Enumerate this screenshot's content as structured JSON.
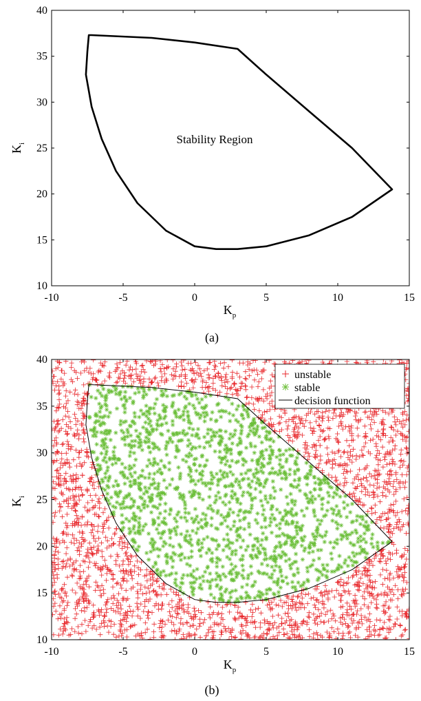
{
  "chart_data": [
    {
      "type": "line",
      "caption": "(a)",
      "annotation": "Stability Region",
      "xlabel": "K",
      "xlabel_sub": "p",
      "ylabel": "K",
      "ylabel_sub": "i",
      "xlim": [
        -10,
        15
      ],
      "ylim": [
        10,
        40
      ],
      "xticks": [
        -10,
        -5,
        0,
        5,
        10,
        15
      ],
      "yticks": [
        10,
        15,
        20,
        25,
        30,
        35,
        40
      ],
      "grid": false,
      "series": [
        {
          "color": "#000000",
          "x": [
            -7.4,
            -7.2,
            -3.0,
            0.0,
            3.0,
            5.0,
            8.0,
            11.0,
            13.8,
            11.0,
            8.0,
            5.0,
            3.0,
            1.5,
            0.0,
            -2.0,
            -4.0,
            -5.5,
            -6.5,
            -7.2,
            -7.6,
            -7.5,
            -7.4
          ],
          "y": [
            37.3,
            37.3,
            37.0,
            36.5,
            35.8,
            33.0,
            29.0,
            25.0,
            20.5,
            17.5,
            15.5,
            14.3,
            14.0,
            14.0,
            14.3,
            16.0,
            19.0,
            22.5,
            26.0,
            29.5,
            33.0,
            35.5,
            37.3
          ]
        }
      ]
    },
    {
      "type": "scatter",
      "caption": "(b)",
      "xlabel": "K",
      "xlabel_sub": "p",
      "ylabel": "K",
      "ylabel_sub": "i",
      "xlim": [
        -10,
        15
      ],
      "ylim": [
        10,
        40
      ],
      "xticks": [
        -10,
        -5,
        0,
        5,
        10,
        15
      ],
      "yticks": [
        10,
        15,
        20,
        25,
        30,
        35,
        40
      ],
      "grid": false,
      "legend_position": "top-right",
      "series": [
        {
          "name": "unstable",
          "marker": "+",
          "color": "#e8262a",
          "sample_count": 2600
        },
        {
          "name": "stable",
          "marker": "*",
          "color": "#6cbf3a",
          "sample_count": 1700
        },
        {
          "name": "decision function",
          "marker": "line",
          "color": "#000000",
          "x": [
            -7.4,
            -7.2,
            -3.0,
            0.0,
            3.0,
            5.0,
            8.0,
            11.0,
            13.8,
            11.0,
            8.0,
            5.0,
            3.0,
            1.5,
            0.0,
            -2.0,
            -4.0,
            -5.5,
            -6.5,
            -7.2,
            -7.6,
            -7.5,
            -7.4
          ],
          "y": [
            37.3,
            37.3,
            37.0,
            36.5,
            35.8,
            33.0,
            29.0,
            25.0,
            20.5,
            17.5,
            15.5,
            14.3,
            14.0,
            14.0,
            14.3,
            16.0,
            19.0,
            22.5,
            26.0,
            29.5,
            33.0,
            35.5,
            37.3
          ]
        }
      ]
    }
  ]
}
